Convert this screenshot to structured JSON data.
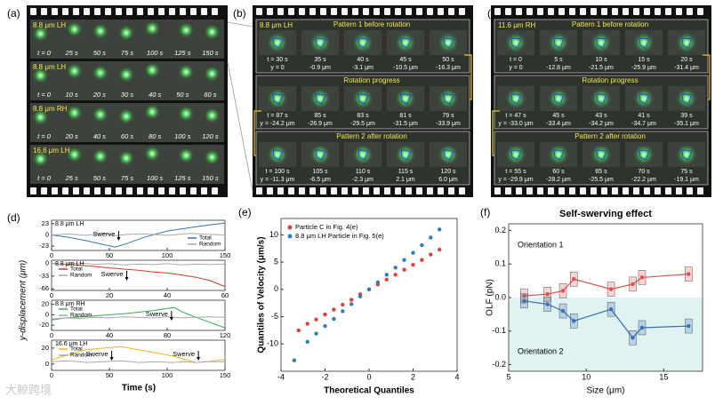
{
  "panel_labels": [
    "(a)",
    "(b)",
    "(c)",
    "(d)",
    "(e)",
    "(f)"
  ],
  "panel_a": {
    "rows": [
      {
        "label": "8.8 μm LH",
        "times": [
          "t = 0",
          "25 s",
          "50 s",
          "75 s",
          "100 s",
          "125 s",
          "150 s"
        ]
      },
      {
        "label": "8.8 μm LH",
        "times": [
          "t = 0",
          "10 s",
          "20 s",
          "30 s",
          "40 s",
          "50 s",
          "60 s"
        ]
      },
      {
        "label": "8.8 μm RH",
        "times": [
          "t = 0",
          "20 s",
          "40 s",
          "60 s",
          "80 s",
          "100 s",
          "120 s"
        ]
      },
      {
        "label": "16.6 μm LH",
        "times": [
          "t = 0",
          "25 s",
          "50 s",
          "75 s",
          "100 s",
          "125 s",
          "150 s"
        ]
      }
    ]
  },
  "panel_b": {
    "label": "8.8 μm LH",
    "sections": [
      {
        "title": "Pattern 1 before rotation",
        "t": [
          "t = 30 s",
          "35 s",
          "40 s",
          "45 s",
          "50 s"
        ],
        "y": [
          "y = 0",
          "-0.9 μm",
          "-3.1 μm",
          "-10.5 μm",
          "-16.3 μm"
        ]
      },
      {
        "title": "Rotation progress",
        "t": [
          "t = 87 s",
          "85 s",
          "83 s",
          "81 s",
          "79 s"
        ],
        "y": [
          "y = -24.2 μm",
          "-26.9 μm",
          "-29.5 μm",
          "-31.5 μm",
          "-33.9 μm"
        ]
      },
      {
        "title": "Pattern 2 after rotation",
        "t": [
          "t = 100 s",
          "105 s",
          "110 s",
          "115 s",
          "120 s"
        ],
        "y": [
          "y = -11.3 μm",
          "-6.5 μm",
          "-2.3 μm",
          "2.1 μm",
          "6.0 μm"
        ]
      }
    ]
  },
  "panel_c": {
    "label": "11.6 μm RH",
    "sections": [
      {
        "title": "Pattern 1 before rotation",
        "t": [
          "t = 0",
          "5 s",
          "10 s",
          "15 s",
          "20 s"
        ],
        "y": [
          "y = 0",
          "-12.8 μm",
          "-21.5 μm",
          "-25.9 μm",
          "-31.4 μm"
        ]
      },
      {
        "title": "Rotation progress",
        "t": [
          "t = 47 s",
          "45 s",
          "43 s",
          "41 s",
          "39 s"
        ],
        "y": [
          "y = -33.0 μm",
          "-33.4 μm",
          "-34.2 μm",
          "-34.7 μm",
          "-35.1 μm"
        ]
      },
      {
        "title": "Pattern 2 after rotation",
        "t": [
          "t = 55 s",
          "60 s",
          "65 s",
          "70 s",
          "75 s"
        ],
        "y": [
          "y = -29.9 μm",
          "-28.2 μm",
          "-25.5 μm",
          "-22.2 μm",
          "-19.1 μm"
        ]
      }
    ]
  },
  "watermark": "大鲸跨境",
  "chart_data": [
    {
      "type": "line",
      "xlabel": "Time (s)",
      "ylabel": "y-displacement (μm)",
      "subplots": [
        {
          "label": "8.8 μm LH",
          "xlim": [
            0,
            150
          ],
          "xticks": [
            0,
            50,
            100,
            150
          ],
          "ylim": [
            -32,
            30
          ],
          "yticks": [
            -23,
            0,
            23
          ],
          "annotations": [
            {
              "text": "Swerve",
              "x": 58
            }
          ],
          "series": [
            {
              "name": "Total",
              "color": "#3b6fb6",
              "x": [
                0,
                15,
                30,
                45,
                55,
                65,
                80,
                100,
                120,
                135,
                150
              ],
              "values": [
                0,
                -5,
                -12,
                -20,
                -25,
                -18,
                -5,
                8,
                15,
                20,
                24
              ]
            },
            {
              "name": "Random",
              "color": "#a8a8a8",
              "x": [
                0,
                15,
                30,
                45,
                55,
                65,
                80,
                100,
                120,
                135,
                150
              ],
              "values": [
                0,
                2,
                -1,
                3,
                -2,
                1,
                2,
                -1,
                3,
                1,
                0
              ]
            }
          ]
        },
        {
          "label": "8.8 μm LH",
          "xlim": [
            0,
            60
          ],
          "xticks": [
            0,
            20,
            40,
            60
          ],
          "ylim": [
            -70,
            8
          ],
          "yticks": [
            0,
            -33,
            -66
          ],
          "annotations": [
            {
              "text": "Swerve",
              "x": 26
            }
          ],
          "series": [
            {
              "name": "Total",
              "color": "#d9372f",
              "x": [
                0,
                5,
                10,
                15,
                20,
                25,
                30,
                35,
                40,
                45,
                50,
                55,
                60
              ],
              "values": [
                0,
                -3,
                -5,
                -8,
                -12,
                -15,
                -18,
                -22,
                -25,
                -30,
                -36,
                -45,
                -60
              ]
            },
            {
              "name": "Random",
              "color": "#a8a8a8",
              "x": [
                0,
                5,
                10,
                15,
                20,
                25,
                30,
                35,
                40,
                45,
                50,
                55,
                60
              ],
              "values": [
                0,
                -2,
                1,
                -3,
                -1,
                -4,
                -2,
                -3,
                -1,
                -4,
                -2,
                -3,
                -2
              ]
            }
          ]
        },
        {
          "label": "8.8 μm RH",
          "xlim": [
            0,
            120
          ],
          "xticks": [
            0,
            40,
            80,
            120
          ],
          "ylim": [
            -30,
            28
          ],
          "yticks": [
            20,
            0,
            -20
          ],
          "annotations": [
            {
              "text": "Swerve",
              "x": 83
            }
          ],
          "series": [
            {
              "name": "Total",
              "color": "#3aaa55",
              "x": [
                0,
                10,
                20,
                30,
                40,
                50,
                60,
                70,
                80,
                85,
                90,
                100,
                110,
                120
              ],
              "values": [
                -10,
                -6,
                -4,
                -2,
                0,
                2,
                5,
                8,
                12,
                14,
                6,
                -5,
                -15,
                -25
              ]
            },
            {
              "name": "Random",
              "color": "#a8a8a8",
              "x": [
                0,
                10,
                20,
                30,
                40,
                50,
                60,
                70,
                80,
                85,
                90,
                100,
                110,
                120
              ],
              "values": [
                -8,
                -6,
                -7,
                -5,
                -6,
                -4,
                -5,
                -6,
                -4,
                -5,
                -6,
                -5,
                -4,
                -5
              ]
            }
          ]
        },
        {
          "label": "16.6 μm LH",
          "xlim": [
            0,
            150
          ],
          "xticks": [
            0,
            50,
            100,
            150
          ],
          "ylim": [
            -8,
            30
          ],
          "yticks": [
            0,
            20
          ],
          "annotations": [
            {
              "text": "Swerve",
              "x": 52
            },
            {
              "text": "Swerve",
              "x": 127
            }
          ],
          "series": [
            {
              "name": "Total",
              "color": "#f0b429",
              "x": [
                0,
                15,
                30,
                45,
                60,
                75,
                90,
                105,
                115,
                125,
                135,
                150
              ],
              "values": [
                5,
                12,
                18,
                20,
                22,
                18,
                14,
                10,
                6,
                2,
                3,
                6
              ]
            },
            {
              "name": "Random",
              "color": "#a8a8a8",
              "x": [
                0,
                15,
                30,
                45,
                60,
                75,
                90,
                105,
                115,
                125,
                135,
                150
              ],
              "values": [
                3,
                4,
                2,
                3,
                4,
                2,
                3,
                2,
                3,
                2,
                3,
                3
              ]
            }
          ]
        }
      ]
    },
    {
      "type": "scatter",
      "xlabel": "Theoretical Quantiles",
      "ylabel": "Quantiles of Velocity (μm/s)",
      "xlim": [
        -4,
        4
      ],
      "xticks": [
        -4,
        -2,
        0,
        2,
        4
      ],
      "ylim": [
        -15,
        13
      ],
      "yticks": [
        -10,
        -5,
        0,
        5,
        10
      ],
      "legend": "upper left",
      "series": [
        {
          "name": "Particle C in Fig. 4(e)",
          "color": "#e0403a",
          "x": [
            -3.2,
            -2.8,
            -2.4,
            -2,
            -1.6,
            -1.2,
            -0.8,
            -0.4,
            0,
            0.4,
            0.8,
            1.2,
            1.6,
            2,
            2.4,
            2.8,
            3.2
          ],
          "values": [
            -7.5,
            -6.3,
            -5.5,
            -4.6,
            -3.7,
            -2.8,
            -1.9,
            -0.9,
            0,
            0.9,
            1.8,
            2.7,
            3.6,
            4.5,
            5.4,
            6.4,
            7.3
          ]
        },
        {
          "name": "8.8 μm LH Particle in Fig. 5(e)",
          "color": "#2a7fc0",
          "x": [
            -3.4,
            -2.8,
            -2.4,
            -2,
            -1.6,
            -1.2,
            -0.8,
            -0.4,
            0,
            0.4,
            0.8,
            1.2,
            1.6,
            2,
            2.4,
            2.8,
            3.2
          ],
          "values": [
            -13,
            -9.6,
            -8.1,
            -6.7,
            -5.4,
            -4,
            -2.7,
            -1.3,
            0,
            1.3,
            2.7,
            4,
            5.4,
            6.7,
            8.1,
            9.5,
            11
          ]
        }
      ]
    },
    {
      "type": "line",
      "title": "Self-swerving effect",
      "xlabel": "Size (μm)",
      "ylabel": "OLF (pN)",
      "xlim": [
        5,
        17.5
      ],
      "xticks": [
        5,
        10,
        15
      ],
      "ylim": [
        -0.22,
        0.22
      ],
      "yticks": [
        {
          "value": -0.2,
          "label": "-0.2"
        },
        {
          "value": -0.1,
          "label": "-0.1"
        },
        {
          "value": 0,
          "label": "0.0"
        },
        {
          "value": 0.1,
          "label": "0.1"
        },
        {
          "value": 0.2,
          "label": "0.2"
        }
      ],
      "annotations": [
        "Orientation 1",
        "Orientation 2"
      ],
      "series": [
        {
          "color": "#e0504a",
          "x": [
            6,
            7.5,
            8.5,
            9.2,
            11.6,
            13,
            13.6,
            16.6
          ],
          "values": [
            0.005,
            0.01,
            0.02,
            0.055,
            0.025,
            0.04,
            0.06,
            0.07
          ]
        },
        {
          "color": "#3b6fb6",
          "x": [
            6,
            7.5,
            8.5,
            9.2,
            11.6,
            13,
            13.6,
            16.6
          ],
          "values": [
            -0.01,
            -0.02,
            -0.04,
            -0.07,
            -0.035,
            -0.12,
            -0.09,
            -0.085
          ]
        }
      ]
    }
  ]
}
